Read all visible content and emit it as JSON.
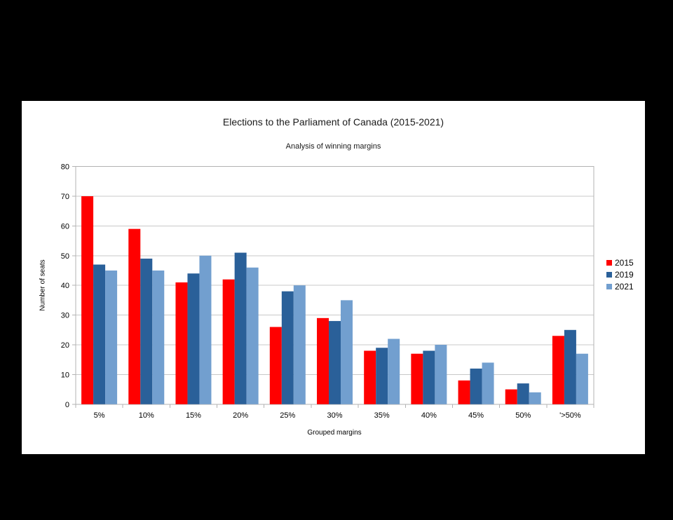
{
  "page": {
    "background_color": "#000000",
    "panel_background_color": "#ffffff"
  },
  "chart_data": {
    "type": "bar",
    "title": "Elections to the Parliament of Canada (2015-2021)",
    "subtitle": "Analysis of winning margins",
    "xlabel": "Grouped margins",
    "ylabel": "Number of seats",
    "categories": [
      "5%",
      "10%",
      "15%",
      "20%",
      "25%",
      "30%",
      "35%",
      "40%",
      "45%",
      "50%",
      "'>50%"
    ],
    "series": [
      {
        "name": "2015",
        "color": "#ff0000",
        "values": [
          70,
          59,
          41,
          42,
          26,
          29,
          18,
          17,
          8,
          5,
          23
        ]
      },
      {
        "name": "2019",
        "color": "#2a6099",
        "values": [
          47,
          49,
          44,
          51,
          38,
          28,
          19,
          18,
          12,
          7,
          25
        ]
      },
      {
        "name": "2021",
        "color": "#729fcf",
        "values": [
          45,
          45,
          50,
          46,
          40,
          35,
          22,
          20,
          14,
          4,
          17
        ]
      }
    ],
    "ylim": [
      0,
      80
    ],
    "ytick_step": 10,
    "grid": "horizontal",
    "legend_position": "right",
    "axis_line_color": "#b3b3b3",
    "gridline_color": "#c8c8c8",
    "tick_label_color": "#000000"
  }
}
